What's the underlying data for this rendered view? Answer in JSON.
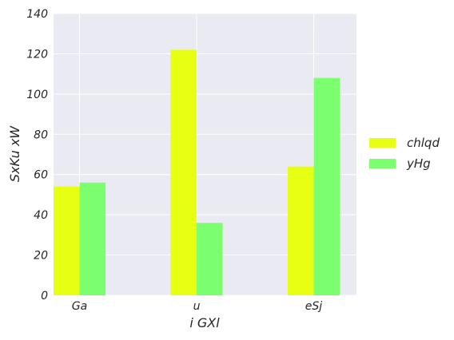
{
  "chart_data": {
    "type": "bar",
    "categories": [
      "Ga",
      "u",
      "eSj"
    ],
    "series": [
      {
        "name": "chlqd",
        "values": [
          54,
          122,
          64
        ],
        "color": "#e6ff13"
      },
      {
        "name": "yHg",
        "values": [
          56,
          36,
          108
        ],
        "color": "#7cff6e"
      }
    ],
    "xlabel": "i   GXl",
    "ylabel": "SxKu  xW",
    "ylim": [
      0,
      140
    ],
    "yticks": [
      0,
      20,
      40,
      60,
      80,
      100,
      120,
      140
    ],
    "grid": true,
    "legend_position": "right",
    "background_color": "#eaeaf2",
    "grid_color": "#ffffff"
  }
}
